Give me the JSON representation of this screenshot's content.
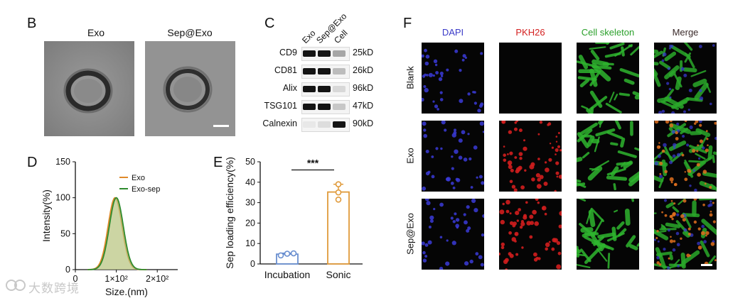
{
  "panels": {
    "B": {
      "label": "B",
      "image_titles": [
        "Exo",
        "Sep@Exo"
      ]
    },
    "C": {
      "label": "C",
      "lanes": [
        "Exo",
        "Sep@Exo",
        "Cell"
      ],
      "rows": [
        {
          "protein": "CD9",
          "size": "25kD"
        },
        {
          "protein": "CD81",
          "size": "26kD"
        },
        {
          "protein": "Alix",
          "size": "96kD"
        },
        {
          "protein": "TSG101",
          "size": "47kD"
        },
        {
          "protein": "Calnexin",
          "size": "90kD"
        }
      ]
    },
    "D": {
      "label": "D"
    },
    "E": {
      "label": "E"
    },
    "F": {
      "label": "F",
      "columns": [
        {
          "name": "DAPI",
          "color": "#3a3ac8"
        },
        {
          "name": "PKH26",
          "color": "#d42020"
        },
        {
          "name": "Cell skeleton",
          "color": "#2aa02a"
        },
        {
          "name": "Merge",
          "color": "#3a2a2a"
        }
      ],
      "rows": [
        "Blank",
        "Exo",
        "Sep@Exo"
      ]
    }
  },
  "chart_data": [
    {
      "panel": "D",
      "type": "line",
      "xlabel": "Size.(nm)",
      "ylabel": "Intensity(%)",
      "xlim": [
        0,
        250
      ],
      "ylim": [
        0,
        150
      ],
      "x_ticks": [
        "0",
        "1×10²",
        "2×10²"
      ],
      "y_ticks": [
        "0",
        "50",
        "100",
        "150"
      ],
      "legend_position": "top-right",
      "series": [
        {
          "name": "Exo",
          "color": "#e08a2a",
          "peak_x": 97,
          "peak_y": 100,
          "width_sd": 17
        },
        {
          "name": "Exo-sep",
          "color": "#2e8b2e",
          "peak_x": 100,
          "peak_y": 100,
          "width_sd": 17
        }
      ]
    },
    {
      "panel": "E",
      "type": "bar",
      "ylabel": "Sep loading efficiency(%)",
      "ylim": [
        0,
        50
      ],
      "y_ticks": [
        "0",
        "10",
        "20",
        "30",
        "40",
        "50"
      ],
      "categories": [
        "Incubation",
        "Sonic"
      ],
      "values": [
        4.8,
        35.2
      ],
      "points": [
        [
          4.2,
          5.0,
          5.2
        ],
        [
          31.5,
          35.0,
          39.0
        ]
      ],
      "error": [
        0.5,
        3.8
      ],
      "colors": [
        "#6a8fd0",
        "#e09a3a"
      ],
      "significance": "***"
    }
  ],
  "watermark": "大数跨境"
}
